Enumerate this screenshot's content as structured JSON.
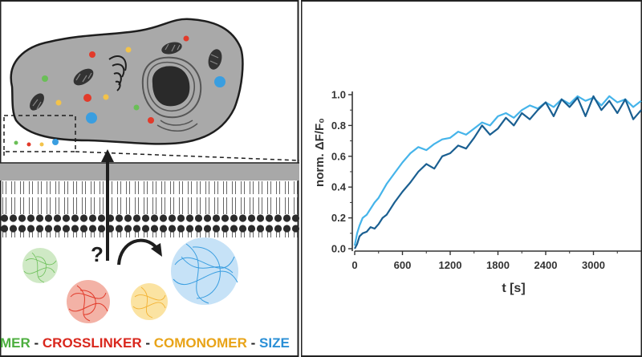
{
  "figure": {
    "left": {
      "question_mark": "?",
      "legend": [
        {
          "text": "MER",
          "color": "#4cae3e"
        },
        {
          "text": " - ",
          "color": "#222222"
        },
        {
          "text": "CROSSLINKER",
          "color": "#d9261c"
        },
        {
          "text": " - ",
          "color": "#222222"
        },
        {
          "text": "COMONOMER",
          "color": "#e8a317"
        },
        {
          "text": " - ",
          "color": "#222222"
        },
        {
          "text": "SIZE",
          "color": "#2a8fd6"
        }
      ],
      "colors": {
        "cell": "#a9a9a9",
        "membrane": "#a8a8a8",
        "green": "#6abf57",
        "red": "#e23a2a",
        "yellow": "#f3c34a",
        "blue": "#3a9ee0"
      }
    }
  },
  "chart_data": {
    "type": "line",
    "xlabel": "t [s]",
    "ylabel": "norm. ΔF/F₀",
    "xlim": [
      0,
      3600
    ],
    "ylim": [
      0,
      1.0
    ],
    "xticks": [
      "0",
      "600",
      "1200",
      "1800",
      "2400",
      "3000"
    ],
    "yticks": [
      "0.0",
      "0.2",
      "0.4",
      "0.6",
      "0.8",
      "1.0"
    ],
    "series": [
      {
        "color": "#45b4ea",
        "x": [
          0,
          30,
          60,
          100,
          150,
          200,
          250,
          300,
          400,
          500,
          600,
          700,
          800,
          900,
          1000,
          1100,
          1200,
          1300,
          1400,
          1500,
          1600,
          1700,
          1800,
          1900,
          2000,
          2100,
          2200,
          2300,
          2400,
          2500,
          2600,
          2700,
          2800,
          2900,
          3000,
          3100,
          3200,
          3300,
          3400,
          3500,
          3600
        ],
        "y": [
          0.02,
          0.1,
          0.15,
          0.2,
          0.22,
          0.26,
          0.3,
          0.33,
          0.42,
          0.49,
          0.56,
          0.62,
          0.66,
          0.64,
          0.68,
          0.71,
          0.72,
          0.76,
          0.74,
          0.78,
          0.82,
          0.8,
          0.86,
          0.88,
          0.85,
          0.9,
          0.93,
          0.91,
          0.95,
          0.92,
          0.97,
          0.94,
          0.99,
          0.96,
          0.98,
          0.93,
          0.99,
          0.95,
          0.97,
          0.92,
          0.96
        ]
      },
      {
        "color": "#1a5f91",
        "x": [
          0,
          30,
          60,
          100,
          150,
          200,
          250,
          300,
          350,
          400,
          500,
          600,
          700,
          800,
          900,
          1000,
          1100,
          1200,
          1300,
          1400,
          1500,
          1600,
          1700,
          1800,
          1900,
          2000,
          2100,
          2200,
          2300,
          2400,
          2500,
          2600,
          2700,
          2800,
          2900,
          3000,
          3100,
          3200,
          3300,
          3400,
          3500,
          3600
        ],
        "y": [
          0.0,
          0.03,
          0.08,
          0.1,
          0.11,
          0.14,
          0.13,
          0.16,
          0.2,
          0.22,
          0.3,
          0.37,
          0.43,
          0.5,
          0.55,
          0.52,
          0.6,
          0.62,
          0.67,
          0.65,
          0.72,
          0.8,
          0.74,
          0.78,
          0.85,
          0.8,
          0.88,
          0.84,
          0.9,
          0.95,
          0.86,
          0.97,
          0.92,
          0.98,
          0.86,
          0.99,
          0.9,
          0.96,
          0.88,
          0.97,
          0.84,
          0.9
        ]
      }
    ]
  }
}
